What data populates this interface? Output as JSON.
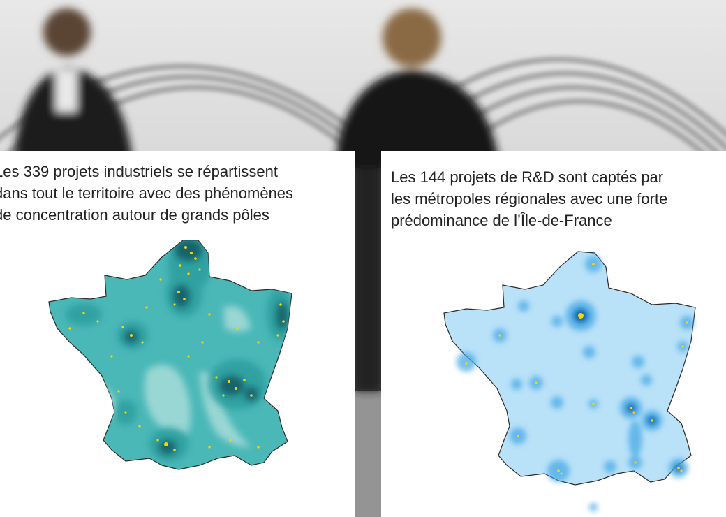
{
  "background": {
    "palette": {
      "sky": "#e6e6e6",
      "structure": "#8c8c8c",
      "coat": "#161616",
      "floor": "#4a4a4a"
    }
  },
  "left_panel": {
    "lines": [
      "Les 339 projets industriels se répartissent",
      "dans tout le territoire avec des phénomènes",
      "de concentration autour de grands pôles"
    ],
    "colors": {
      "base": "#4bb8b8",
      "light": "#a7dcd9",
      "mid": "#2f9f9f",
      "dark": "#12646b",
      "dots": "#ffd400"
    }
  },
  "right_panel": {
    "lines": [
      "Les 144 projets de R&D sont captés par",
      "les métropoles régionales avec une forte",
      "prédominance de l’Île-de-France"
    ],
    "colors": {
      "base": "#b9e1f8",
      "mid": "#4aaae6",
      "dark": "#0a64a8",
      "dots": "#ffd400"
    }
  }
}
